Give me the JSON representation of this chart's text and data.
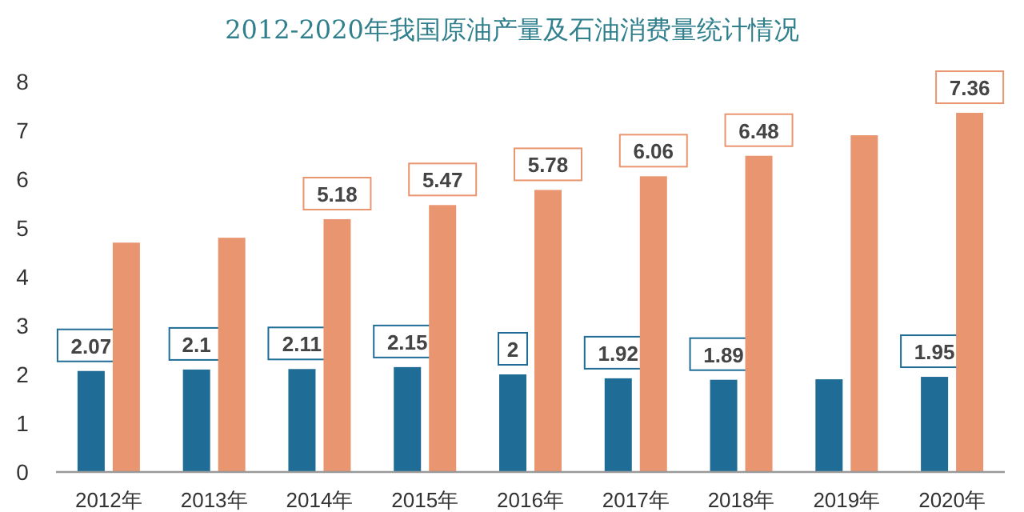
{
  "chart_data": {
    "type": "bar",
    "title": "2012-2020年我国原油产量及石油消费量统计情况",
    "categories": [
      "2012年",
      "2013年",
      "2014年",
      "2015年",
      "2016年",
      "2017年",
      "2018年",
      "2019年",
      "2020年"
    ],
    "series": [
      {
        "color": "#1f6d96",
        "values": [
          2.07,
          2.1,
          2.11,
          2.15,
          2,
          1.92,
          1.89,
          1.9,
          1.95
        ],
        "value_labels": [
          "2.07",
          "2.1",
          "2.11",
          "2.15",
          "2",
          "1.92",
          "1.89",
          null,
          "1.95"
        ]
      },
      {
        "color": "#e9956f",
        "values": [
          4.7,
          4.8,
          5.18,
          5.47,
          5.78,
          6.06,
          6.48,
          6.9,
          7.36
        ],
        "value_labels": [
          null,
          null,
          "5.18",
          "5.47",
          "5.78",
          "6.06",
          "6.48",
          null,
          "7.36"
        ]
      }
    ],
    "ylim": [
      0,
      8
    ],
    "yticks": [
      0,
      1,
      2,
      3,
      4,
      5,
      6,
      7,
      8
    ],
    "grid": false
  }
}
